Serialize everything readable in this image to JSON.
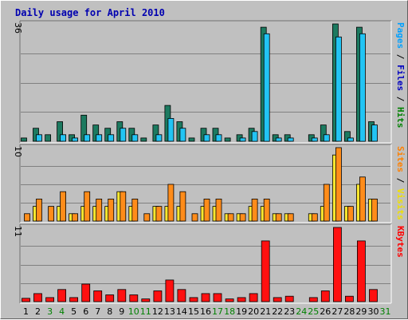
{
  "chart_data": {
    "type": "bar",
    "title": "Daily usage for April 2010",
    "days": [
      "1",
      "2",
      "3",
      "4",
      "5",
      "6",
      "7",
      "8",
      "9",
      "10",
      "11",
      "12",
      "13",
      "14",
      "15",
      "16",
      "17",
      "18",
      "19",
      "20",
      "21",
      "22",
      "23",
      "24",
      "25",
      "26",
      "27",
      "28",
      "29",
      "30",
      "31"
    ],
    "weekend_days": [
      "3",
      "4",
      "10",
      "11",
      "17",
      "18",
      "24",
      "25",
      "31"
    ],
    "panels": [
      {
        "name": "pages-files-hits",
        "scale_label": "36",
        "ymax": 36,
        "grid": true,
        "side_labels": [
          {
            "text": "Pages",
            "color": "#00a0ff"
          },
          {
            "text": " / ",
            "color": "#000000"
          },
          {
            "text": "Files",
            "color": "#0000c0"
          },
          {
            "text": " / ",
            "color": "#000000"
          },
          {
            "text": "Hits",
            "color": "#008000"
          }
        ],
        "series": [
          {
            "color": "#1c7a60",
            "values": [
              1,
              4,
              2,
              6,
              2,
              8,
              5,
              4,
              6,
              4,
              1,
              5,
              11,
              6,
              1,
              4,
              4,
              1,
              2,
              4,
              35,
              2,
              2,
              0,
              2,
              5,
              36,
              3,
              35,
              6,
              0
            ]
          },
          {
            "color": "#22c4f4",
            "values": [
              0,
              2,
              0,
              2,
              1,
              2,
              2,
              2,
              4,
              2,
              0,
              2,
              7,
              4,
              0,
              2,
              2,
              0,
              1,
              3,
              33,
              1,
              1,
              0,
              1,
              2,
              32,
              1,
              33,
              5,
              0
            ]
          }
        ]
      },
      {
        "name": "visits-sites",
        "scale_label": "10",
        "ymax": 10,
        "grid": true,
        "side_labels": [
          {
            "text": "Sites",
            "color": "#ff8000"
          },
          {
            "text": " / ",
            "color": "#000000"
          },
          {
            "text": "Visits",
            "color": "#f0e000"
          }
        ],
        "series": [
          {
            "color": "#ffe830",
            "values": [
              0,
              2,
              0,
              2,
              1,
              2,
              2,
              2,
              4,
              2,
              0,
              2,
              2,
              2,
              0,
              2,
              2,
              1,
              1,
              2,
              2,
              1,
              1,
              0,
              1,
              2,
              9,
              2,
              5,
              3,
              0
            ]
          },
          {
            "color": "#ff8c1a",
            "values": [
              1,
              3,
              2,
              4,
              1,
              4,
              3,
              3,
              4,
              3,
              1,
              2,
              5,
              4,
              1,
              3,
              3,
              1,
              1,
              3,
              3,
              1,
              1,
              0,
              1,
              5,
              10,
              2,
              6,
              3,
              0
            ]
          }
        ]
      },
      {
        "name": "kbytes",
        "scale_label": "11",
        "ymax": 11,
        "grid": true,
        "side_labels": [
          {
            "text": "KBytes",
            "color": "#ff0000"
          }
        ],
        "series": [
          {
            "color": "#ff1010",
            "values": [
              0.5,
              1.2,
              0.6,
              1.8,
              0.6,
              2.6,
              1.6,
              1.0,
              1.8,
              1.0,
              0.4,
              1.6,
              3.2,
              1.8,
              0.6,
              1.2,
              1.2,
              0.4,
              0.6,
              1.2,
              9.0,
              0.6,
              0.8,
              0.0,
              0.6,
              1.6,
              11.0,
              0.8,
              9.0,
              1.8,
              0.0
            ]
          }
        ]
      }
    ]
  }
}
